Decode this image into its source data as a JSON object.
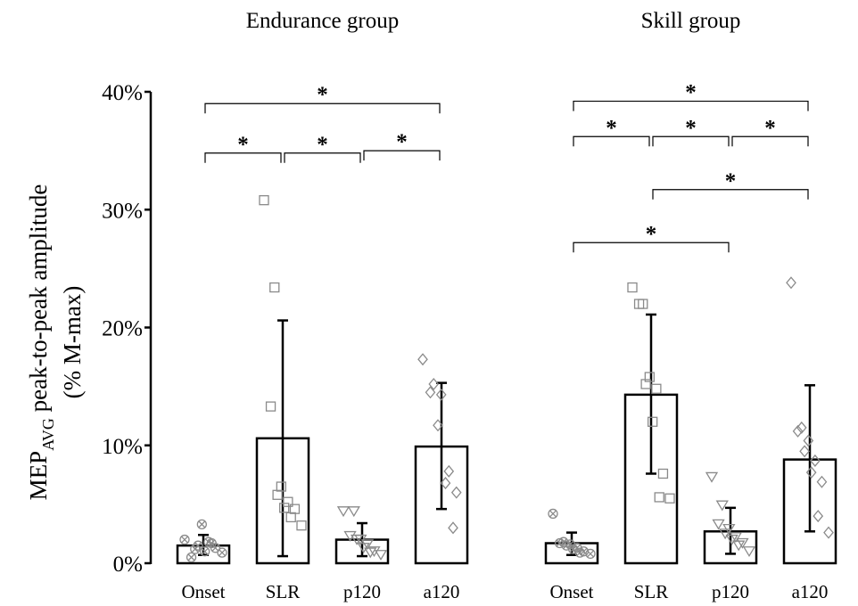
{
  "chart_data": {
    "type": "bar",
    "ylabel_main": "MEP",
    "ylabel_sub": "AVG",
    "ylabel_rest": " peak-to-peak amplitude",
    "ylabel_line2": "(% M-max)",
    "ylim": [
      0,
      0.4
    ],
    "yticks": [
      {
        "v": 0.0,
        "label": "0%"
      },
      {
        "v": 0.1,
        "label": "10%"
      },
      {
        "v": 0.2,
        "label": "20%"
      },
      {
        "v": 0.3,
        "label": "30%"
      },
      {
        "v": 0.4,
        "label": "40%"
      }
    ],
    "significance_label": "*",
    "groups": [
      {
        "title": "Endurance group",
        "categories": [
          "Onset",
          "SLR",
          "p120",
          "a120"
        ],
        "values": [
          0.015,
          0.106,
          0.02,
          0.099
        ],
        "sd_low": [
          0.007,
          0.006,
          0.006,
          0.046
        ],
        "sd_high": [
          0.024,
          0.206,
          0.034,
          0.153
        ],
        "points": [
          [
            0.02,
            0.012,
            0.005,
            0.033,
            0.015,
            0.018,
            0.01,
            0.013,
            0.017,
            0.009
          ],
          [
            0.308,
            0.234,
            0.133,
            0.065,
            0.058,
            0.052,
            0.047,
            0.046,
            0.039,
            0.032
          ],
          [
            0.044,
            0.044,
            0.023,
            0.02,
            0.02,
            0.016,
            0.013,
            0.01,
            0.009,
            0.007
          ],
          [
            0.173,
            0.152,
            0.145,
            0.143,
            0.117,
            0.078,
            0.068,
            0.06,
            0.03
          ]
        ],
        "markers": [
          "circle-x",
          "square",
          "triangle-down",
          "diamond"
        ],
        "brackets": [
          {
            "from": 0,
            "to": 3,
            "y": 0.39
          },
          {
            "from": 0,
            "to": 1,
            "y": 0.348
          },
          {
            "from": 1,
            "to": 2,
            "y": 0.348
          },
          {
            "from": 2,
            "to": 3,
            "y": 0.35
          }
        ]
      },
      {
        "title": "Skill group",
        "categories": [
          "Onset",
          "SLR",
          "p120",
          "a120"
        ],
        "values": [
          0.017,
          0.143,
          0.027,
          0.088
        ],
        "sd_low": [
          0.007,
          0.076,
          0.008,
          0.027
        ],
        "sd_high": [
          0.026,
          0.211,
          0.047,
          0.151
        ],
        "points": [
          [
            0.042,
            0.018,
            0.017,
            0.016,
            0.015,
            0.013,
            0.012,
            0.01,
            0.009,
            0.008
          ],
          [
            0.234,
            0.22,
            0.22,
            0.158,
            0.152,
            0.148,
            0.12,
            0.076,
            0.056,
            0.055
          ],
          [
            0.073,
            0.049,
            0.033,
            0.029,
            0.025,
            0.022,
            0.02,
            0.017,
            0.015,
            0.01
          ],
          [
            0.238,
            0.115,
            0.112,
            0.104,
            0.095,
            0.087,
            0.077,
            0.069,
            0.04,
            0.026
          ]
        ],
        "markers": [
          "circle-x",
          "square",
          "triangle-down",
          "diamond"
        ],
        "brackets": [
          {
            "from": 0,
            "to": 3,
            "y": 0.392
          },
          {
            "from": 0,
            "to": 1,
            "y": 0.362
          },
          {
            "from": 1,
            "to": 2,
            "y": 0.362
          },
          {
            "from": 2,
            "to": 3,
            "y": 0.362
          },
          {
            "from": 1,
            "to": 3,
            "y": 0.317
          },
          {
            "from": 0,
            "to": 2,
            "y": 0.272
          }
        ]
      }
    ]
  }
}
